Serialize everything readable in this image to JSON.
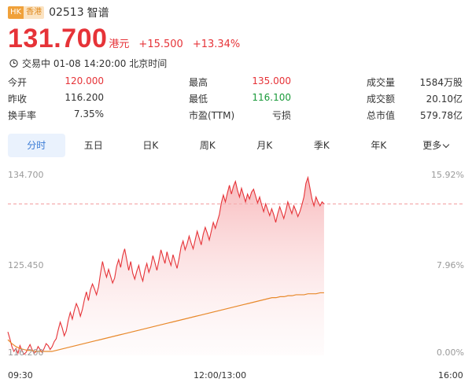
{
  "header": {
    "market_badge": "HK",
    "market_badge_cn": "香港",
    "code": "02513",
    "name": "智谱"
  },
  "quote": {
    "price": "131.700",
    "unit": "港元",
    "change": "+15.500",
    "change_pct": "+13.34%"
  },
  "status": {
    "text": "交易中 01-08 14:20:00 北京时间",
    "icon": "clock-icon"
  },
  "stats": [
    [
      {
        "label": "今开",
        "value": "120.000",
        "color": "red"
      },
      {
        "label": "最高",
        "value": "135.000",
        "color": "red"
      },
      {
        "label": "成交量",
        "value": "1584万股",
        "color": ""
      }
    ],
    [
      {
        "label": "昨收",
        "value": "116.200",
        "color": ""
      },
      {
        "label": "最低",
        "value": "116.100",
        "color": "green"
      },
      {
        "label": "成交额",
        "value": "20.10亿",
        "color": ""
      }
    ],
    [
      {
        "label": "换手率",
        "value": "7.35%",
        "color": ""
      },
      {
        "label": "市盈(TTM)",
        "value": "亏损",
        "color": ""
      },
      {
        "label": "总市值",
        "value": "579.78亿",
        "color": ""
      }
    ]
  ],
  "tabs": [
    "分时",
    "五日",
    "日K",
    "周K",
    "月K",
    "季K",
    "年K",
    "更多"
  ],
  "active_tab": 0,
  "colors": {
    "up": "#e63338",
    "down": "#1a9a3a",
    "avg_line": "#e8892b",
    "accent": "#3a7bd5"
  },
  "chart_data": {
    "type": "line",
    "y_left_ticks": [
      "134.700",
      "125.450",
      "116.200"
    ],
    "y_right_ticks": [
      "15.92%",
      "7.96%",
      "0.00%"
    ],
    "x_ticks": [
      "09:30",
      "12:00/13:00",
      "16:00"
    ],
    "ylim": [
      116.2,
      134.7
    ],
    "prev_close": 116.2,
    "reference_price": 131.7,
    "x_points_total": 330,
    "series": [
      {
        "values": [
          118.6,
          117.9,
          117.1,
          116.6,
          116.9,
          116.4,
          117.2,
          116.7,
          116.3,
          116.5,
          116.9,
          117.3,
          116.8,
          116.4,
          116.6,
          117.1,
          116.8,
          116.5,
          116.9,
          117.4,
          117.2,
          116.8,
          117.1,
          117.6,
          117.9,
          118.8,
          119.6,
          119.0,
          118.2,
          118.7,
          119.8,
          120.6,
          119.9,
          120.8,
          121.5,
          121.0,
          120.2,
          120.9,
          121.9,
          122.7,
          121.8,
          122.9,
          123.5,
          123.0,
          122.4,
          123.2,
          124.6,
          125.8,
          124.9,
          124.2,
          125.0,
          124.3,
          123.6,
          124.1,
          125.3,
          126.0,
          125.2,
          126.4,
          127.1,
          126.0,
          124.9,
          125.8,
          124.6,
          124.0,
          124.8,
          125.4,
          124.4,
          123.8,
          124.9,
          125.6,
          124.7,
          125.3,
          126.4,
          125.7,
          124.9,
          125.9,
          127.0,
          126.3,
          125.6,
          126.8,
          126.0,
          125.4,
          126.5,
          125.8,
          125.1,
          126.1,
          127.3,
          127.9,
          127.0,
          127.6,
          128.4,
          127.7,
          127.1,
          128.0,
          128.9,
          128.2,
          127.5,
          128.6,
          129.3,
          128.7,
          128.0,
          128.9,
          129.8,
          129.2,
          129.9,
          130.6,
          131.8,
          132.6,
          131.9,
          132.8,
          133.6,
          132.7,
          133.5,
          134.0,
          133.1,
          132.4,
          133.3,
          132.6,
          131.9,
          132.7,
          132.2,
          132.9,
          133.2,
          132.5,
          131.8,
          132.4,
          131.6,
          130.9,
          131.7,
          131.1,
          130.5,
          131.2,
          130.6,
          129.8,
          130.7,
          131.4,
          130.8,
          130.2,
          131.0,
          131.9,
          131.3,
          130.7,
          131.5,
          131.0,
          130.4,
          130.9,
          131.6,
          132.4,
          133.8,
          134.4,
          133.3,
          132.2,
          131.5,
          132.4,
          131.9,
          131.5,
          131.9,
          131.7
        ],
        "color": "#e63338"
      },
      {
        "values": [
          117.8,
          117.4,
          117.1,
          116.9,
          116.8,
          116.7,
          116.7,
          116.6,
          116.6,
          116.6,
          116.6,
          116.6,
          116.7,
          116.8,
          116.9,
          117.0,
          117.1,
          117.2,
          117.3,
          117.4,
          117.5,
          117.6,
          117.7,
          117.8,
          117.9,
          118.0,
          118.1,
          118.2,
          118.3,
          118.4,
          118.5,
          118.6,
          118.7,
          118.8,
          118.9,
          119.0,
          119.1,
          119.2,
          119.3,
          119.4,
          119.5,
          119.6,
          119.7,
          119.8,
          119.9,
          120.0,
          120.1,
          120.2,
          120.3,
          120.4,
          120.5,
          120.6,
          120.7,
          120.8,
          120.9,
          121.0,
          121.1,
          121.2,
          121.3,
          121.4,
          121.5,
          121.6,
          121.7,
          121.8,
          121.9,
          122.0,
          122.1,
          122.1,
          122.2,
          122.2,
          122.3,
          122.3,
          122.4,
          122.4,
          122.4,
          122.5,
          122.5,
          122.5,
          122.6,
          122.6
        ],
        "color": "#e8892b"
      }
    ]
  }
}
